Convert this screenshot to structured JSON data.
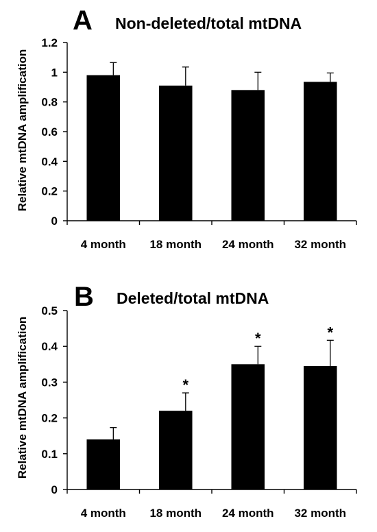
{
  "chart_data": [
    {
      "type": "bar",
      "panel": "A",
      "title": "Non-deleted/total mtDNA",
      "xlabel": "",
      "ylabel": "Relative mtDNA amplification",
      "categories": [
        "4 month",
        "18 month",
        "24 month",
        "32 month"
      ],
      "values": [
        0.98,
        0.91,
        0.88,
        0.935
      ],
      "errors": [
        0.085,
        0.125,
        0.12,
        0.06
      ],
      "significance": [
        "",
        "",
        "",
        ""
      ],
      "ylim": [
        0,
        1.2
      ],
      "yticks": [
        "0",
        "0.2",
        "0.4",
        "0.6",
        "0.8",
        "1",
        "1.2"
      ],
      "grid": false,
      "bar_color": "#000000"
    },
    {
      "type": "bar",
      "panel": "B",
      "title": "Deleted/total mtDNA",
      "xlabel": "",
      "ylabel": "Relative mtDNA amplification",
      "categories": [
        "4 month",
        "18 month",
        "24 month",
        "32 month"
      ],
      "values": [
        0.14,
        0.22,
        0.35,
        0.345
      ],
      "errors": [
        0.033,
        0.05,
        0.05,
        0.072
      ],
      "significance": [
        "",
        "*",
        "*",
        "*"
      ],
      "ylim": [
        0,
        0.5
      ],
      "yticks": [
        "0",
        "0.1",
        "0.2",
        "0.3",
        "0.4",
        "0.5"
      ],
      "grid": false,
      "bar_color": "#000000"
    }
  ]
}
